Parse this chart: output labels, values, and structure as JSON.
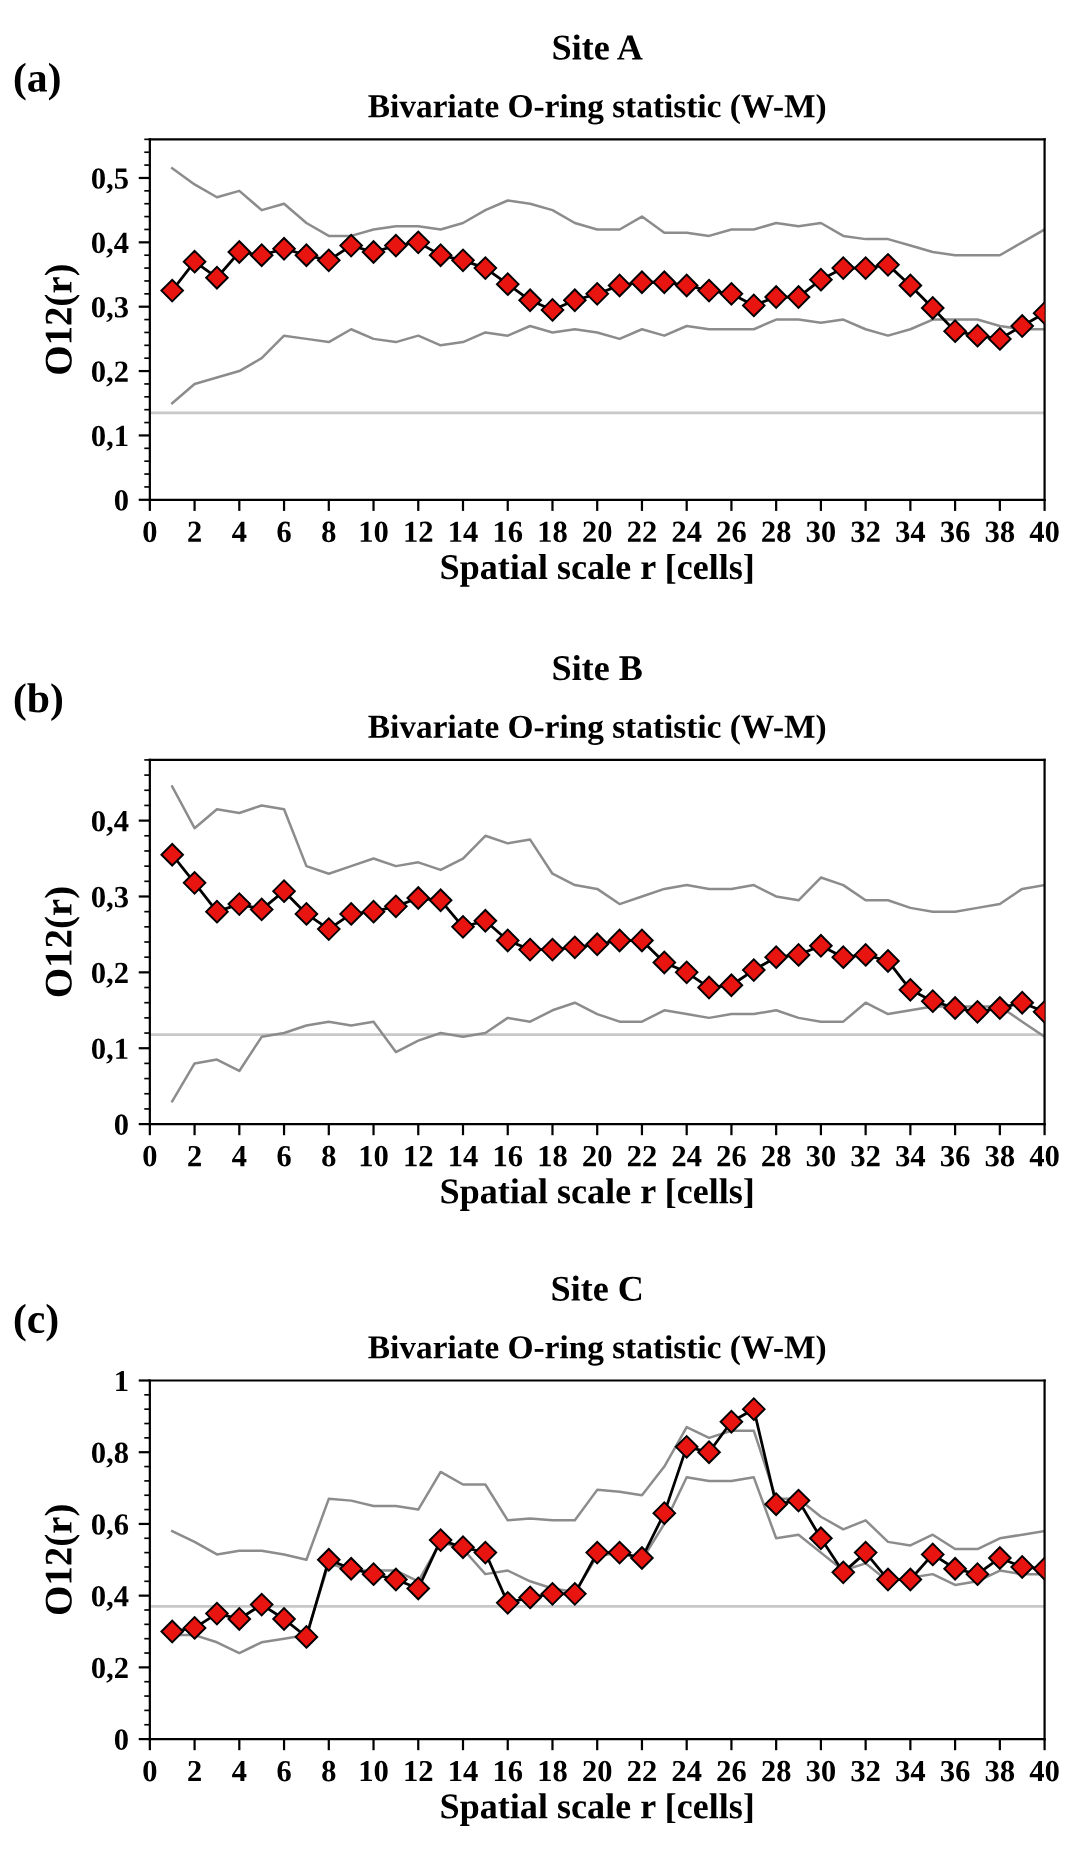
{
  "chart_data": [
    {
      "type": "line",
      "title": "Site A",
      "subtitle": "Bivariate O-ring statistic (W-M)",
      "xlabel": "Spatial scale r [cells]",
      "ylabel": "O12(r)",
      "annotations": [
        "(a)"
      ],
      "x": [
        1,
        2,
        3,
        4,
        5,
        6,
        7,
        8,
        9,
        10,
        11,
        12,
        13,
        14,
        15,
        16,
        17,
        18,
        19,
        20,
        21,
        22,
        23,
        24,
        25,
        26,
        27,
        28,
        29,
        30,
        31,
        32,
        33,
        34,
        35,
        36,
        37,
        38,
        39,
        40
      ],
      "series": [
        {
          "color": "#8c8c8c",
          "marker": "none",
          "values": [
            0.515,
            0.49,
            0.47,
            0.48,
            0.45,
            0.46,
            0.43,
            0.41,
            0.41,
            0.42,
            0.425,
            0.425,
            0.42,
            0.43,
            0.45,
            0.465,
            0.46,
            0.45,
            0.43,
            0.42,
            0.42,
            0.44,
            0.415,
            0.415,
            0.41,
            0.42,
            0.42,
            0.43,
            0.425,
            0.43,
            0.41,
            0.405,
            0.405,
            0.395,
            0.385,
            0.38,
            0.38,
            0.38,
            0.4,
            0.42
          ]
        },
        {
          "color": "#8c8c8c",
          "marker": "none",
          "values": [
            0.15,
            0.18,
            0.19,
            0.2,
            0.22,
            0.255,
            0.25,
            0.245,
            0.265,
            0.25,
            0.245,
            0.255,
            0.24,
            0.245,
            0.26,
            0.255,
            0.27,
            0.26,
            0.265,
            0.26,
            0.25,
            0.265,
            0.255,
            0.27,
            0.265,
            0.265,
            0.265,
            0.28,
            0.28,
            0.275,
            0.28,
            0.265,
            0.255,
            0.265,
            0.28,
            0.28,
            0.28,
            0.27,
            0.265,
            0.265
          ]
        },
        {
          "color": "#e8140f",
          "marker": "diamond",
          "values": [
            0.325,
            0.37,
            0.345,
            0.385,
            0.38,
            0.39,
            0.38,
            0.372,
            0.395,
            0.385,
            0.395,
            0.4,
            0.38,
            0.372,
            0.36,
            0.335,
            0.31,
            0.295,
            0.31,
            0.32,
            0.333,
            0.338,
            0.338,
            0.333,
            0.325,
            0.32,
            0.302,
            0.315,
            0.315,
            0.342,
            0.36,
            0.36,
            0.365,
            0.333,
            0.298,
            0.262,
            0.255,
            0.25,
            0.27,
            0.29
          ]
        }
      ],
      "ref_lines": [
        {
          "axis": "y",
          "value": 0.135,
          "color": "#c8c8c8"
        }
      ],
      "xlim": [
        0,
        40
      ],
      "xticks": [
        0,
        2,
        4,
        6,
        8,
        10,
        12,
        14,
        16,
        18,
        20,
        22,
        24,
        26,
        28,
        30,
        32,
        34,
        36,
        38,
        40
      ],
      "ylim": [
        0,
        0.56
      ],
      "yticks": [
        {
          "value": 0,
          "label": "0"
        },
        {
          "value": 0.1,
          "label": "0,1"
        },
        {
          "value": 0.2,
          "label": "0,2"
        },
        {
          "value": 0.3,
          "label": "0,3"
        },
        {
          "value": 0.4,
          "label": "0,4"
        },
        {
          "value": 0.5,
          "label": "0,5"
        }
      ],
      "grid": false,
      "legend": false,
      "line_style": "solid"
    },
    {
      "type": "line",
      "title": "Site B",
      "subtitle": "Bivariate O-ring statistic (W-M)",
      "xlabel": "Spatial scale r [cells]",
      "ylabel": "O12(r)",
      "annotations": [
        "(b)"
      ],
      "x": [
        1,
        2,
        3,
        4,
        5,
        6,
        7,
        8,
        9,
        10,
        11,
        12,
        13,
        14,
        15,
        16,
        17,
        18,
        19,
        20,
        21,
        22,
        23,
        24,
        25,
        26,
        27,
        28,
        29,
        30,
        31,
        32,
        33,
        34,
        35,
        36,
        37,
        38,
        39,
        40
      ],
      "series": [
        {
          "color": "#8c8c8c",
          "marker": "none",
          "values": [
            0.445,
            0.39,
            0.415,
            0.41,
            0.42,
            0.415,
            0.34,
            0.33,
            0.34,
            0.35,
            0.34,
            0.345,
            0.335,
            0.35,
            0.38,
            0.37,
            0.375,
            0.33,
            0.315,
            0.31,
            0.29,
            0.3,
            0.31,
            0.315,
            0.31,
            0.31,
            0.315,
            0.3,
            0.295,
            0.325,
            0.315,
            0.295,
            0.295,
            0.285,
            0.28,
            0.28,
            0.285,
            0.29,
            0.31,
            0.315
          ]
        },
        {
          "color": "#8c8c8c",
          "marker": "none",
          "values": [
            0.03,
            0.08,
            0.085,
            0.07,
            0.115,
            0.12,
            0.13,
            0.135,
            0.13,
            0.135,
            0.095,
            0.11,
            0.12,
            0.115,
            0.12,
            0.14,
            0.135,
            0.15,
            0.16,
            0.145,
            0.135,
            0.135,
            0.15,
            0.145,
            0.14,
            0.145,
            0.145,
            0.15,
            0.14,
            0.135,
            0.135,
            0.16,
            0.145,
            0.15,
            0.155,
            0.155,
            0.155,
            0.155,
            0.135,
            0.115
          ]
        },
        {
          "color": "#e8140f",
          "marker": "diamond",
          "values": [
            0.355,
            0.318,
            0.28,
            0.29,
            0.283,
            0.307,
            0.277,
            0.257,
            0.277,
            0.28,
            0.287,
            0.298,
            0.295,
            0.26,
            0.268,
            0.242,
            0.23,
            0.23,
            0.233,
            0.237,
            0.242,
            0.242,
            0.213,
            0.2,
            0.18,
            0.183,
            0.203,
            0.22,
            0.223,
            0.235,
            0.22,
            0.223,
            0.215,
            0.177,
            0.162,
            0.153,
            0.148,
            0.153,
            0.16,
            0.148
          ]
        }
      ],
      "ref_lines": [
        {
          "axis": "y",
          "value": 0.118,
          "color": "#c8c8c8"
        }
      ],
      "xlim": [
        0,
        40
      ],
      "xticks": [
        0,
        2,
        4,
        6,
        8,
        10,
        12,
        14,
        16,
        18,
        20,
        22,
        24,
        26,
        28,
        30,
        32,
        34,
        36,
        38,
        40
      ],
      "ylim": [
        0,
        0.48
      ],
      "yticks": [
        {
          "value": 0,
          "label": "0"
        },
        {
          "value": 0.1,
          "label": "0,1"
        },
        {
          "value": 0.2,
          "label": "0,2"
        },
        {
          "value": 0.3,
          "label": "0,3"
        },
        {
          "value": 0.4,
          "label": "0,4"
        }
      ],
      "grid": false,
      "legend": false,
      "line_style": "solid"
    },
    {
      "type": "line",
      "title": "Site C",
      "subtitle": "Bivariate O-ring statistic (W-M)",
      "xlabel": "Spatial scale r [cells]",
      "ylabel": "O12(r)",
      "annotations": [
        "(c)"
      ],
      "x": [
        1,
        2,
        3,
        4,
        5,
        6,
        7,
        8,
        9,
        10,
        11,
        12,
        13,
        14,
        15,
        16,
        17,
        18,
        19,
        20,
        21,
        22,
        23,
        24,
        25,
        26,
        27,
        28,
        29,
        30,
        31,
        32,
        33,
        34,
        35,
        36,
        37,
        38,
        39,
        40
      ],
      "series": [
        {
          "color": "#8c8c8c",
          "marker": "none",
          "values": [
            0.58,
            0.55,
            0.515,
            0.525,
            0.525,
            0.515,
            0.5,
            0.67,
            0.665,
            0.65,
            0.65,
            0.64,
            0.745,
            0.71,
            0.71,
            0.61,
            0.615,
            0.61,
            0.61,
            0.695,
            0.69,
            0.68,
            0.76,
            0.87,
            0.84,
            0.86,
            0.86,
            0.67,
            0.67,
            0.62,
            0.585,
            0.61,
            0.55,
            0.54,
            0.57,
            0.53,
            0.53,
            0.56,
            0.57,
            0.58
          ]
        },
        {
          "color": "#8c8c8c",
          "marker": "none",
          "values": [
            0.29,
            0.29,
            0.27,
            0.24,
            0.27,
            0.28,
            0.29,
            0.49,
            0.47,
            0.47,
            0.47,
            0.44,
            0.55,
            0.53,
            0.46,
            0.47,
            0.44,
            0.42,
            0.41,
            0.51,
            0.52,
            0.5,
            0.6,
            0.73,
            0.72,
            0.72,
            0.73,
            0.56,
            0.57,
            0.52,
            0.47,
            0.49,
            0.44,
            0.45,
            0.46,
            0.43,
            0.44,
            0.47,
            0.46,
            0.46
          ]
        },
        {
          "color": "#e8140f",
          "marker": "diamond",
          "values": [
            0.3,
            0.31,
            0.35,
            0.335,
            0.375,
            0.335,
            0.285,
            0.5,
            0.475,
            0.46,
            0.445,
            0.42,
            0.555,
            0.535,
            0.52,
            0.38,
            0.395,
            0.405,
            0.405,
            0.52,
            0.52,
            0.505,
            0.63,
            0.815,
            0.8,
            0.885,
            0.92,
            0.655,
            0.665,
            0.56,
            0.465,
            0.52,
            0.445,
            0.445,
            0.515,
            0.475,
            0.46,
            0.505,
            0.48,
            0.475
          ]
        }
      ],
      "ref_lines": [
        {
          "axis": "y",
          "value": 0.37,
          "color": "#c8c8c8"
        }
      ],
      "xlim": [
        0,
        40
      ],
      "xticks": [
        0,
        2,
        4,
        6,
        8,
        10,
        12,
        14,
        16,
        18,
        20,
        22,
        24,
        26,
        28,
        30,
        32,
        34,
        36,
        38,
        40
      ],
      "ylim": [
        0,
        1
      ],
      "yticks": [
        {
          "value": 0,
          "label": "0"
        },
        {
          "value": 0.2,
          "label": "0,2"
        },
        {
          "value": 0.4,
          "label": "0,4"
        },
        {
          "value": 0.6,
          "label": "0,6"
        },
        {
          "value": 0.8,
          "label": "0,8"
        },
        {
          "value": 1,
          "label": "1"
        }
      ],
      "grid": false,
      "legend": false,
      "line_style": "solid"
    }
  ]
}
